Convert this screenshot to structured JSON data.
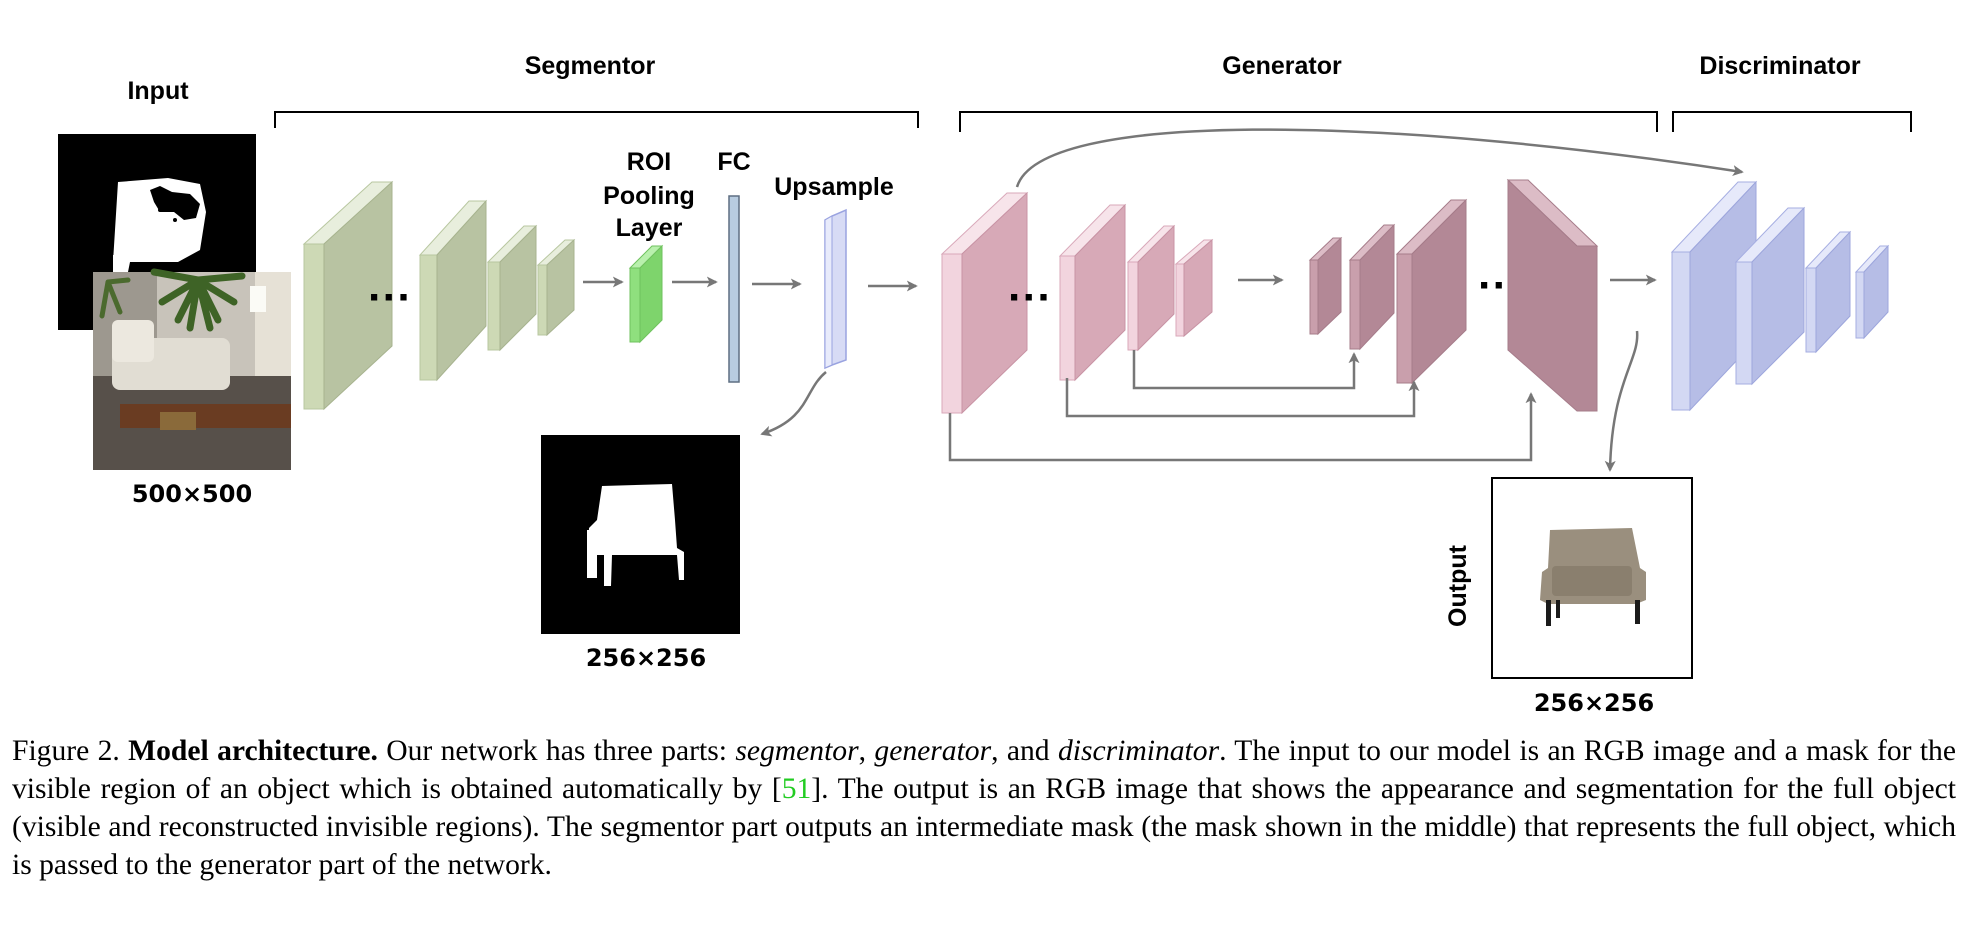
{
  "sections": {
    "segmentor": "Segmentor",
    "generator": "Generator",
    "discriminator": "Discriminator"
  },
  "labels": {
    "input": "Input",
    "roi_line1": "ROI",
    "roi_line2": "Pooling",
    "roi_line3": "Layer",
    "fc": "FC",
    "upsample": "Upsample",
    "output": "Output",
    "ellipsis": "···"
  },
  "dimensions": {
    "input": "500×500",
    "mask": "256×256",
    "output": "256×256"
  },
  "colors": {
    "segmentor": "#cdd9b5",
    "roi": "#8fe07e",
    "fc": "#b8cce0",
    "upsample": "#d7dbf5",
    "generator_encoder": "#e9bccb",
    "generator_decoder": "#b98e9b",
    "discriminator": "#b6bde6",
    "arrow": "#777777",
    "citation": "#22cc22"
  },
  "caption": {
    "figure": "Figure 2.",
    "title": "Model architecture.",
    "t1": "Our network has three parts:",
    "seg": "segmentor",
    "t2": ",",
    "gen": "generator",
    "t3": ", and",
    "disc": "discriminator",
    "t4": ". The input to our model is an RGB image and a mask for the visible region of an object which is obtained automatically by [",
    "ref": "51",
    "t5": "]. The output is an RGB image that shows the appearance and segmentation for the full object (visible and reconstructed invisible regions). The segmentor part outputs an intermediate mask (the mask shown in the middle) that represents the full object, which is passed to the generator part of the network."
  }
}
